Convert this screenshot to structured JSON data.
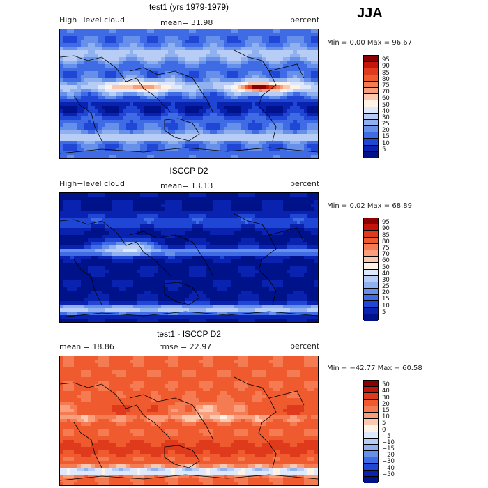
{
  "season": "JJA",
  "panels": [
    {
      "title": "test1 (yrs 1979-1979)",
      "left_label": "High−level cloud",
      "stat1": "mean=  31.98",
      "stat2": "",
      "units": "percent",
      "minmax": "Min =    0.00 Max =  96.67",
      "levels": [
        "95",
        "90",
        "85",
        "80",
        "75",
        "70",
        "60",
        "50",
        "40",
        "30",
        "25",
        "20",
        "15",
        "10",
        "5"
      ],
      "colors": [
        "#8b0000",
        "#c4140c",
        "#e03a1c",
        "#ef5a2e",
        "#f57b52",
        "#f99f7e",
        "#fcc9b0",
        "#fff3e6",
        "#dfe9fb",
        "#b7cdf6",
        "#8fb1f0",
        "#6790ea",
        "#3f6ce4",
        "#1f46d4",
        "#0a22b0",
        "#00128a"
      ],
      "field_type": "model"
    },
    {
      "title": "ISCCP D2",
      "left_label": "High−level cloud",
      "stat1": "mean=  13.13",
      "stat2": "",
      "units": "percent",
      "minmax": "Min =    0.02 Max =  68.89",
      "levels": [
        "95",
        "90",
        "85",
        "80",
        "75",
        "70",
        "60",
        "50",
        "40",
        "30",
        "25",
        "20",
        "15",
        "10",
        "5"
      ],
      "colors": [
        "#8b0000",
        "#c4140c",
        "#e03a1c",
        "#ef5a2e",
        "#f57b52",
        "#f99f7e",
        "#fcc9b0",
        "#fff3e6",
        "#dfe9fb",
        "#b7cdf6",
        "#8fb1f0",
        "#6790ea",
        "#3f6ce4",
        "#1f46d4",
        "#0a22b0",
        "#00128a"
      ],
      "field_type": "obs"
    },
    {
      "title": "test1 - ISCCP D2",
      "left_label": "mean =   18.86",
      "stat1": "rmse =   22.97",
      "stat2": "",
      "units": "percent",
      "minmax": "Min = −42.77 Max =  60.58",
      "levels": [
        "50",
        "40",
        "30",
        "20",
        "15",
        "10",
        "5",
        "0",
        "−5",
        "−10",
        "−15",
        "−20",
        "−30",
        "−40",
        "−50"
      ],
      "colors": [
        "#8b0000",
        "#c4140c",
        "#e03a1c",
        "#ef5a2e",
        "#f57b52",
        "#f99f7e",
        "#fcc9b0",
        "#fff3e6",
        "#dfe9fb",
        "#b7cdf6",
        "#8fb1f0",
        "#6790ea",
        "#3f6ce4",
        "#1f46d4",
        "#0a22b0",
        "#00128a"
      ],
      "field_type": "diff"
    }
  ]
}
